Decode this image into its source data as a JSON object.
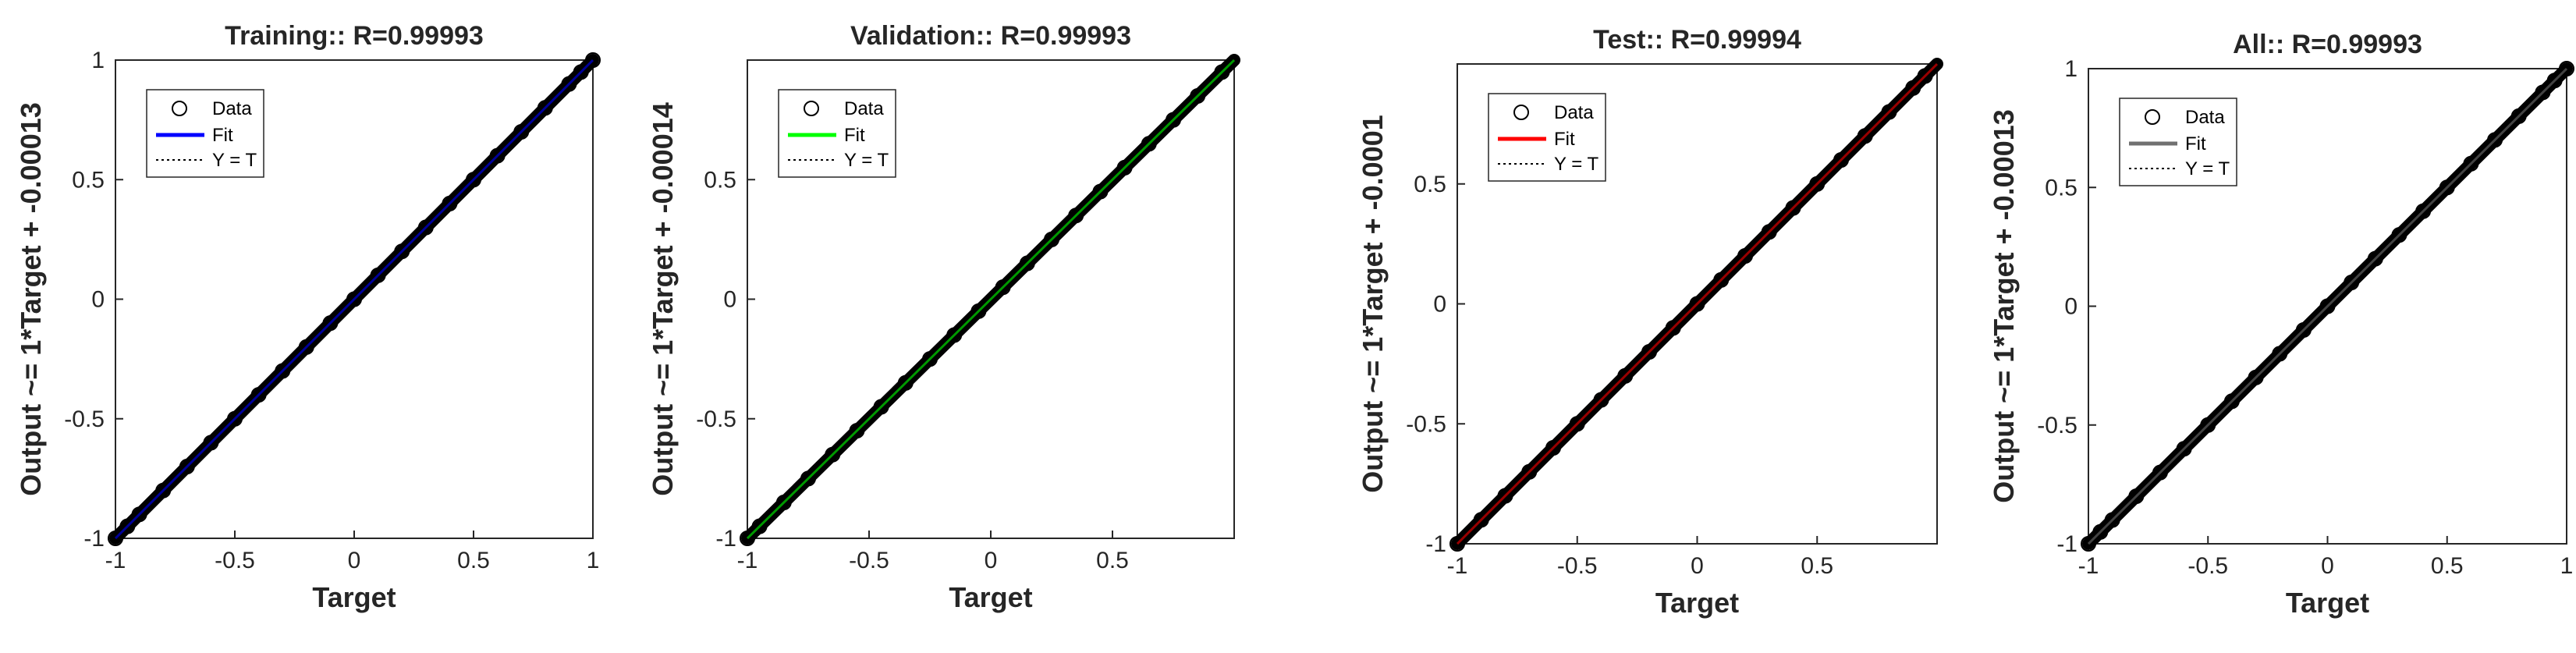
{
  "chart_data": [
    {
      "type": "scatter",
      "title": "Training:: R=0.99993",
      "xlabel": "Target",
      "ylabel": "Output ~= 1*Target + -0.00013",
      "xlim": [
        -1,
        1
      ],
      "ylim": [
        -1,
        1
      ],
      "xticks": [
        "-1",
        "-0.5",
        "0",
        "0.5",
        "1"
      ],
      "yticks": [
        "-1",
        "-0.5",
        "0",
        "0.5",
        "1"
      ],
      "grid": false,
      "legend": {
        "placement": "top-left",
        "entries": [
          "Data",
          "Fit",
          "Y = T"
        ]
      },
      "fit": {
        "slope": 1,
        "intercept": -0.00013,
        "color": "#0000ff"
      },
      "series": [
        {
          "name": "Data",
          "x": [
            -1,
            -0.95,
            -0.9,
            -0.8,
            -0.7,
            -0.6,
            -0.5,
            -0.4,
            -0.3,
            -0.2,
            -0.1,
            0,
            0.1,
            0.2,
            0.3,
            0.4,
            0.5,
            0.6,
            0.7,
            0.8,
            0.9,
            0.95,
            1
          ],
          "y": [
            -1,
            -0.95,
            -0.9,
            -0.8,
            -0.7,
            -0.6,
            -0.5,
            -0.4,
            -0.3,
            -0.2,
            -0.1,
            0,
            0.1,
            0.2,
            0.3,
            0.4,
            0.5,
            0.6,
            0.7,
            0.8,
            0.9,
            0.95,
            1
          ]
        }
      ]
    },
    {
      "type": "scatter",
      "title": "Validation:: R=0.99993",
      "xlabel": "Target",
      "ylabel": "Output ~= 1*Target + -0.00014",
      "xlim": [
        -1,
        1
      ],
      "ylim": [
        -1,
        1
      ],
      "xticks": [
        "-1",
        "-0.5",
        "0",
        "0.5"
      ],
      "yticks": [
        "-1",
        "-0.5",
        "0",
        "0.5"
      ],
      "grid": false,
      "legend": {
        "placement": "top-left",
        "entries": [
          "Data",
          "Fit",
          "Y = T"
        ]
      },
      "fit": {
        "slope": 1,
        "intercept": -0.00014,
        "color": "#00ff00"
      },
      "series": [
        {
          "name": "Data",
          "x": [
            -1,
            -0.95,
            -0.85,
            -0.75,
            -0.65,
            -0.55,
            -0.45,
            -0.35,
            -0.25,
            -0.15,
            -0.05,
            0.05,
            0.15,
            0.25,
            0.35,
            0.45,
            0.55,
            0.65,
            0.75,
            0.85,
            0.95
          ],
          "y": [
            -1,
            -0.95,
            -0.85,
            -0.75,
            -0.65,
            -0.55,
            -0.45,
            -0.35,
            -0.25,
            -0.15,
            -0.05,
            0.05,
            0.15,
            0.25,
            0.35,
            0.45,
            0.55,
            0.65,
            0.75,
            0.85,
            0.95
          ]
        }
      ]
    },
    {
      "type": "scatter",
      "title": "Test:: R=0.99994",
      "xlabel": "Target",
      "ylabel": "Output ~= 1*Target + -0.0001",
      "xlim": [
        -1,
        1
      ],
      "ylim": [
        -1,
        1
      ],
      "xticks": [
        "-1",
        "-0.5",
        "0",
        "0.5"
      ],
      "yticks": [
        "-1",
        "-0.5",
        "0",
        "0.5"
      ],
      "grid": false,
      "legend": {
        "placement": "top-left",
        "entries": [
          "Data",
          "Fit",
          "Y = T"
        ]
      },
      "fit": {
        "slope": 1,
        "intercept": -0.0001,
        "color": "#ff0000"
      },
      "series": [
        {
          "name": "Data",
          "x": [
            -1,
            -0.9,
            -0.8,
            -0.7,
            -0.6,
            -0.5,
            -0.4,
            -0.3,
            -0.2,
            -0.1,
            0,
            0.1,
            0.2,
            0.3,
            0.4,
            0.5,
            0.6,
            0.7,
            0.8,
            0.9,
            0.95
          ],
          "y": [
            -1,
            -0.9,
            -0.8,
            -0.7,
            -0.6,
            -0.5,
            -0.4,
            -0.3,
            -0.2,
            -0.1,
            0,
            0.1,
            0.2,
            0.3,
            0.4,
            0.5,
            0.6,
            0.7,
            0.8,
            0.9,
            0.95
          ]
        }
      ]
    },
    {
      "type": "scatter",
      "title": "All:: R=0.99993",
      "xlabel": "Target",
      "ylabel": "Output ~= 1*Target + -0.00013",
      "xlim": [
        -1,
        1
      ],
      "ylim": [
        -1,
        1
      ],
      "xticks": [
        "-1",
        "-0.5",
        "0",
        "0.5",
        "1"
      ],
      "yticks": [
        "-1",
        "-0.5",
        "0",
        "0.5",
        "1"
      ],
      "grid": false,
      "legend": {
        "placement": "top-left",
        "entries": [
          "Data",
          "Fit",
          "Y = T"
        ]
      },
      "fit": {
        "slope": 1,
        "intercept": -0.00013,
        "color": "#707070"
      },
      "series": [
        {
          "name": "Data",
          "x": [
            -1,
            -0.95,
            -0.9,
            -0.8,
            -0.7,
            -0.6,
            -0.5,
            -0.4,
            -0.3,
            -0.2,
            -0.1,
            0,
            0.1,
            0.2,
            0.3,
            0.4,
            0.5,
            0.6,
            0.7,
            0.8,
            0.9,
            0.95,
            1
          ],
          "y": [
            -1,
            -0.95,
            -0.9,
            -0.8,
            -0.7,
            -0.6,
            -0.5,
            -0.4,
            -0.3,
            -0.2,
            -0.1,
            0,
            0.1,
            0.2,
            0.3,
            0.4,
            0.5,
            0.6,
            0.7,
            0.8,
            0.9,
            0.95,
            1
          ]
        }
      ]
    }
  ]
}
